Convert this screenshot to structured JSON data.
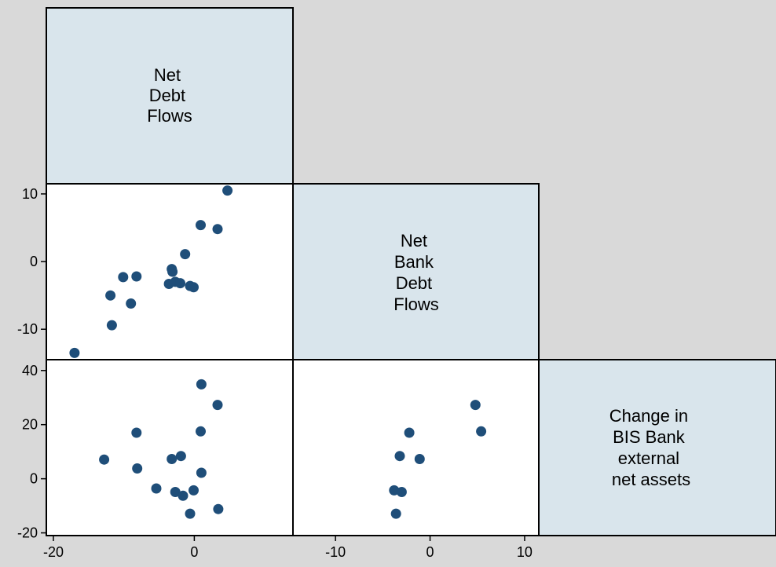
{
  "chart_data": {
    "type": "scatter",
    "title": "",
    "grid": false,
    "variables": [
      {
        "key": "ndf",
        "label_lines": [
          "Net",
          "Debt",
          "Flows"
        ]
      },
      {
        "key": "nbdf",
        "label_lines": [
          "Net",
          "Bank",
          "Debt",
          "Flows"
        ]
      },
      {
        "key": "bis",
        "label_lines": [
          "Change in",
          "BIS Bank",
          "external",
          "net assets"
        ]
      }
    ],
    "axes": {
      "ndf": {
        "range": [
          -21,
          14
        ],
        "ticks": [
          "-20",
          "0"
        ]
      },
      "nbdf": {
        "range": [
          -14.5,
          11.5
        ],
        "ticks": [
          "-10",
          "0",
          "10"
        ]
      },
      "bis": {
        "range": [
          -21,
          44
        ],
        "ticks": [
          "-20",
          "0",
          "20",
          "40"
        ]
      }
    },
    "panels": [
      {
        "x": "ndf",
        "y": "nbdf",
        "points": [
          [
            -17.0,
            -13.5
          ],
          [
            -11.7,
            -9.4
          ],
          [
            -11.9,
            -5.0
          ],
          [
            -10.1,
            -2.3
          ],
          [
            -9.0,
            -6.2
          ],
          [
            -8.2,
            -2.2
          ],
          [
            -3.6,
            -3.3
          ],
          [
            -3.2,
            -1.1
          ],
          [
            -3.1,
            -1.5
          ],
          [
            -2.7,
            -3.0
          ],
          [
            -2.0,
            -3.2
          ],
          [
            -1.3,
            1.1
          ],
          [
            -0.6,
            -3.6
          ],
          [
            -0.1,
            -3.8
          ],
          [
            0.9,
            5.4
          ],
          [
            3.3,
            4.8
          ],
          [
            4.7,
            10.5
          ]
        ]
      },
      {
        "x": "ndf",
        "y": "bis",
        "points": [
          [
            -12.8,
            7.1
          ],
          [
            -8.2,
            17.0
          ],
          [
            -8.1,
            3.8
          ],
          [
            -5.4,
            -3.6
          ],
          [
            -3.2,
            7.3
          ],
          [
            -2.7,
            -4.9
          ],
          [
            -1.9,
            8.4
          ],
          [
            -1.6,
            -6.3
          ],
          [
            -0.6,
            -12.9
          ],
          [
            -0.1,
            -4.3
          ],
          [
            0.9,
            17.5
          ],
          [
            1.0,
            34.9
          ],
          [
            1.0,
            2.2
          ],
          [
            3.3,
            27.3
          ],
          [
            3.4,
            -11.2
          ]
        ]
      },
      {
        "x": "nbdf",
        "y": "bis",
        "points": [
          [
            -3.8,
            -4.3
          ],
          [
            -3.6,
            -12.9
          ],
          [
            -3.2,
            8.4
          ],
          [
            -3.0,
            -4.9
          ],
          [
            -2.2,
            17.0
          ],
          [
            -1.1,
            7.3
          ],
          [
            4.8,
            27.3
          ],
          [
            5.4,
            17.5
          ]
        ]
      }
    ]
  },
  "colors": {
    "background": "#d9d9d9",
    "plot_region": "#ffffff",
    "diagonal_fill": "#d9e5ec",
    "marker": "#1f4e79",
    "frame": "#000000"
  }
}
